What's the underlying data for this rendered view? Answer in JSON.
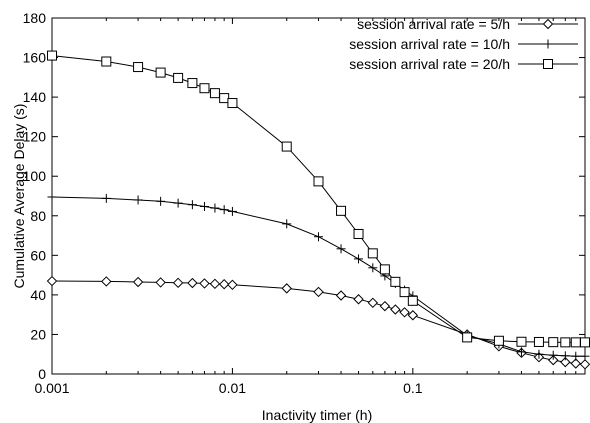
{
  "chart_data": {
    "type": "line",
    "title": "",
    "xlabel": "Inactivity timer (h)",
    "ylabel": "Cumulative Average Delay (s)",
    "xscale": "log",
    "xlim": [
      0.001,
      0.9
    ],
    "ylim": [
      0,
      180
    ],
    "xticks": [
      {
        "value": 0.001,
        "label": "0.001"
      },
      {
        "value": 0.01,
        "label": "0.01"
      },
      {
        "value": 0.1,
        "label": "0.1"
      }
    ],
    "yticks": [
      0,
      20,
      40,
      60,
      80,
      100,
      120,
      140,
      160,
      180
    ],
    "grid": false,
    "legend_position": "top-right",
    "series": [
      {
        "name": "session arrival rate = 5/h",
        "marker": "diamond",
        "x": [
          0.001,
          0.002,
          0.003,
          0.004,
          0.005,
          0.006,
          0.007,
          0.008,
          0.009,
          0.01,
          0.02,
          0.03,
          0.04,
          0.05,
          0.06,
          0.07,
          0.08,
          0.09,
          0.1,
          0.2,
          0.3,
          0.4,
          0.5,
          0.6,
          0.7,
          0.8,
          0.9
        ],
        "y": [
          47,
          46.8,
          46.5,
          46.3,
          46.1,
          46,
          45.8,
          45.6,
          45.4,
          45.1,
          43.3,
          41.5,
          39.7,
          37.8,
          36,
          34.3,
          32.6,
          31.2,
          29.7,
          20,
          14,
          10.7,
          8.5,
          7,
          6,
          5.3,
          4.9
        ]
      },
      {
        "name": "session arrival rate = 10/h",
        "marker": "plus",
        "x": [
          0.001,
          0.002,
          0.003,
          0.004,
          0.005,
          0.006,
          0.007,
          0.008,
          0.009,
          0.01,
          0.02,
          0.03,
          0.04,
          0.05,
          0.06,
          0.07,
          0.08,
          0.09,
          0.1,
          0.2,
          0.3,
          0.4,
          0.5,
          0.6,
          0.7,
          0.8,
          0.9
        ],
        "y": [
          89.5,
          88.8,
          88,
          87.3,
          86.4,
          85.6,
          84.7,
          83.9,
          83.1,
          82.2,
          75.9,
          69.4,
          63.3,
          58.2,
          53.7,
          49.6,
          45.8,
          42.4,
          39.5,
          19.5,
          15.2,
          11.2,
          10,
          9.5,
          9.2,
          9,
          9
        ]
      },
      {
        "name": "session arrival rate = 20/h",
        "marker": "square",
        "x": [
          0.001,
          0.002,
          0.003,
          0.004,
          0.005,
          0.006,
          0.007,
          0.008,
          0.009,
          0.01,
          0.02,
          0.03,
          0.04,
          0.05,
          0.06,
          0.07,
          0.08,
          0.09,
          0.1,
          0.2,
          0.3,
          0.4,
          0.5,
          0.6,
          0.7,
          0.8,
          0.9
        ],
        "y": [
          161,
          158,
          155.2,
          152.4,
          149.7,
          147.1,
          144.5,
          142,
          139.5,
          137,
          115,
          97.4,
          82.5,
          70.8,
          61,
          52.9,
          46.6,
          41.4,
          37,
          18.5,
          16.8,
          16.3,
          16.2,
          16.1,
          16,
          16,
          16
        ]
      }
    ]
  }
}
